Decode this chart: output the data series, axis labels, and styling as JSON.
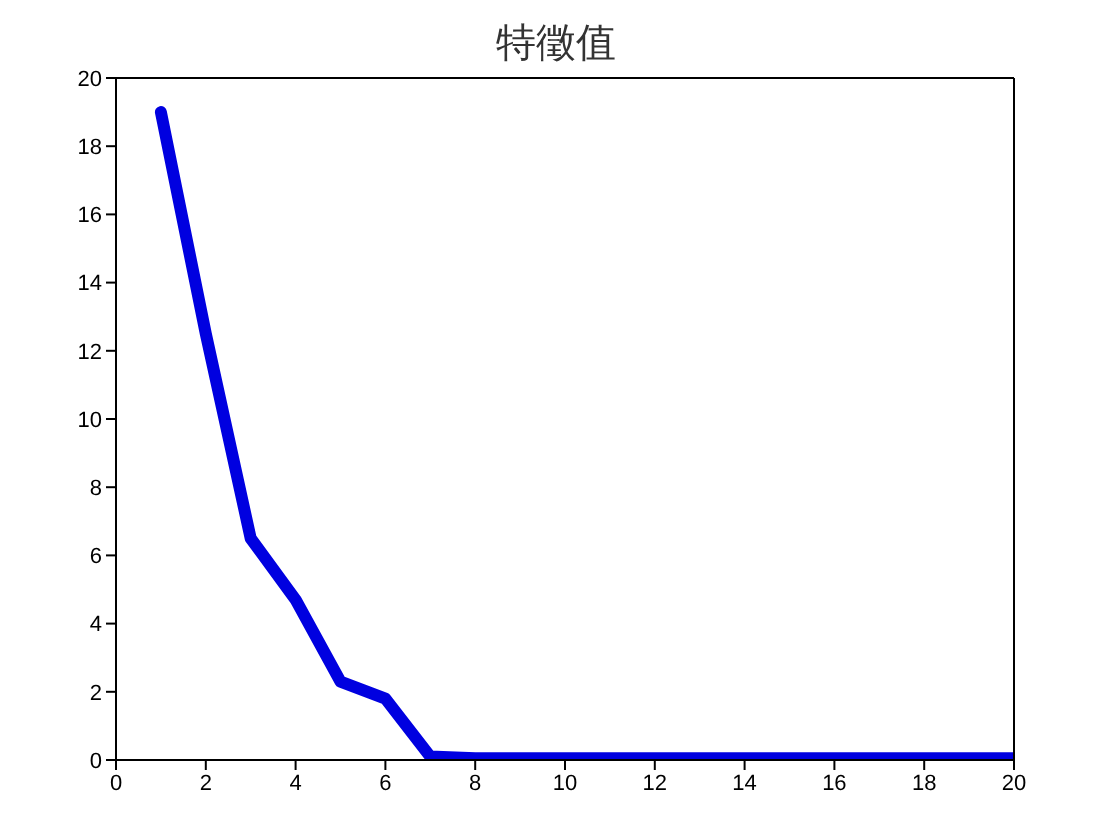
{
  "chart_data": {
    "type": "line",
    "title": "特徵值",
    "x": [
      1,
      2,
      3,
      4,
      5,
      6,
      7,
      8,
      9,
      10,
      11,
      12,
      13,
      14,
      15,
      16,
      17,
      18,
      19,
      20
    ],
    "series": [
      {
        "color": "#0000e0",
        "values": [
          19,
          12.5,
          6.5,
          4.7,
          2.3,
          1.8,
          0.1,
          0.05,
          0.05,
          0.05,
          0.05,
          0.05,
          0.05,
          0.05,
          0.05,
          0.05,
          0.05,
          0.05,
          0.05,
          0.05
        ]
      }
    ],
    "xlim": [
      0,
      20
    ],
    "xticks": [
      0,
      2,
      4,
      6,
      8,
      10,
      12,
      14,
      16,
      18,
      20
    ],
    "ylim": [
      0,
      20
    ],
    "yticks": [
      0,
      2,
      4,
      6,
      8,
      10,
      12,
      14,
      16,
      18,
      20
    ],
    "grid": false,
    "legend": false,
    "marker": "none",
    "line_style": "solid"
  }
}
